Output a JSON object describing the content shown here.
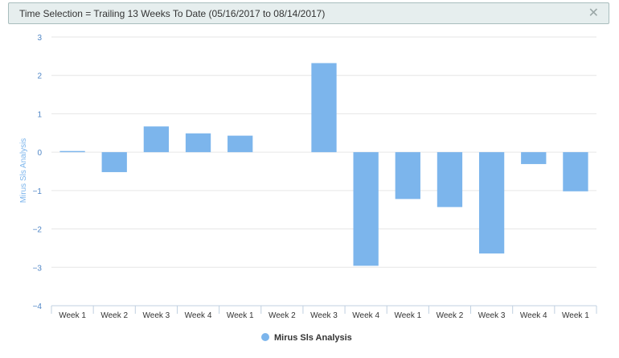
{
  "filter": {
    "text": "Time Selection = Trailing 13 Weeks To Date (05/16/2017 to 08/14/2017)",
    "close_icon": "close-icon"
  },
  "chart_data": {
    "type": "bar",
    "categories": [
      "Week 1",
      "Week 2",
      "Week 3",
      "Week 4",
      "Week 1",
      "Week 2",
      "Week 3",
      "Week 4",
      "Week 1",
      "Week 2",
      "Week 3",
      "Week 4",
      "Week 1"
    ],
    "series": [
      {
        "name": "Mirus Sls Analysis",
        "color": "#7cb5ec",
        "values": [
          0.03,
          -0.52,
          0.67,
          0.49,
          0.43,
          0.0,
          2.32,
          -2.96,
          -1.22,
          -1.43,
          -2.64,
          -0.31,
          -1.02
        ]
      }
    ],
    "ylabel": "Mirus Sls Analysis",
    "ylim": [
      -4,
      3
    ],
    "yticks": [
      3,
      2,
      1,
      0,
      -1,
      -2,
      -3,
      -4
    ],
    "ytick_labels": [
      "3",
      "2",
      "1",
      "0",
      "−1",
      "−2",
      "−3",
      "−4"
    ],
    "grid": true,
    "legend": "bottom-center"
  }
}
